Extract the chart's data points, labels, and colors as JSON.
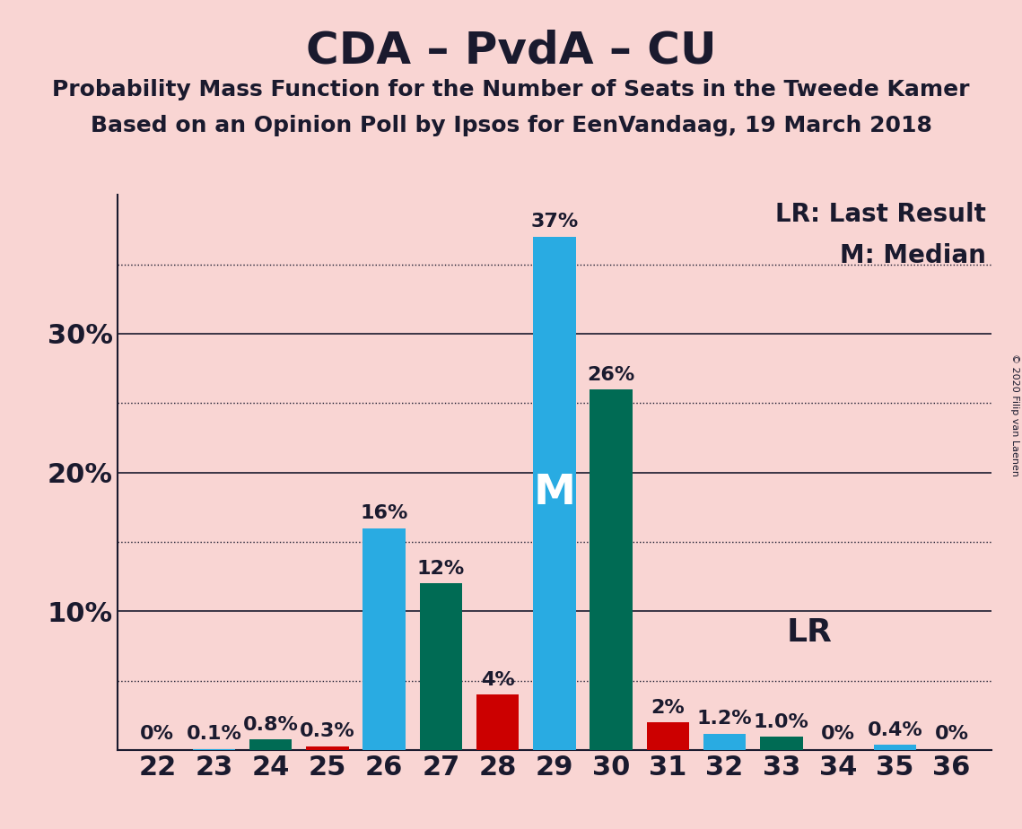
{
  "title": "CDA – PvdA – CU",
  "subtitle1": "Probability Mass Function for the Number of Seats in the Tweede Kamer",
  "subtitle2": "Based on an Opinion Poll by Ipsos for EenVandaag, 19 March 2018",
  "copyright": "© 2020 Filip van Laenen",
  "seats": [
    22,
    23,
    24,
    25,
    26,
    27,
    28,
    29,
    30,
    31,
    32,
    33,
    34,
    35,
    36
  ],
  "values": [
    0.0,
    0.1,
    0.8,
    0.3,
    16.0,
    12.0,
    4.0,
    37.0,
    26.0,
    2.0,
    1.2,
    1.0,
    0.0,
    0.4,
    0.0
  ],
  "labels": [
    "0%",
    "0.1%",
    "0.8%",
    "0.3%",
    "16%",
    "12%",
    "4%",
    "37%",
    "26%",
    "2%",
    "1.2%",
    "1.0%",
    "0%",
    "0.4%",
    "0%"
  ],
  "colors": [
    "#29ABE2",
    "#29ABE2",
    "#006B54",
    "#CC0000",
    "#29ABE2",
    "#006B54",
    "#CC0000",
    "#29ABE2",
    "#006B54",
    "#CC0000",
    "#29ABE2",
    "#006B54",
    "#29ABE2",
    "#29ABE2",
    "#29ABE2"
  ],
  "median_seat": 29,
  "lr_seat": 31,
  "background_color": "#F9D5D3",
  "ymax": 40,
  "legend_lr": "LR: Last Result",
  "legend_m": "M: Median",
  "median_label": "M",
  "lr_label": "LR",
  "title_fontsize": 36,
  "subtitle_fontsize": 18,
  "tick_fontsize": 22,
  "bar_label_fontsize": 16,
  "legend_fontsize": 20,
  "copyright_fontsize": 8
}
